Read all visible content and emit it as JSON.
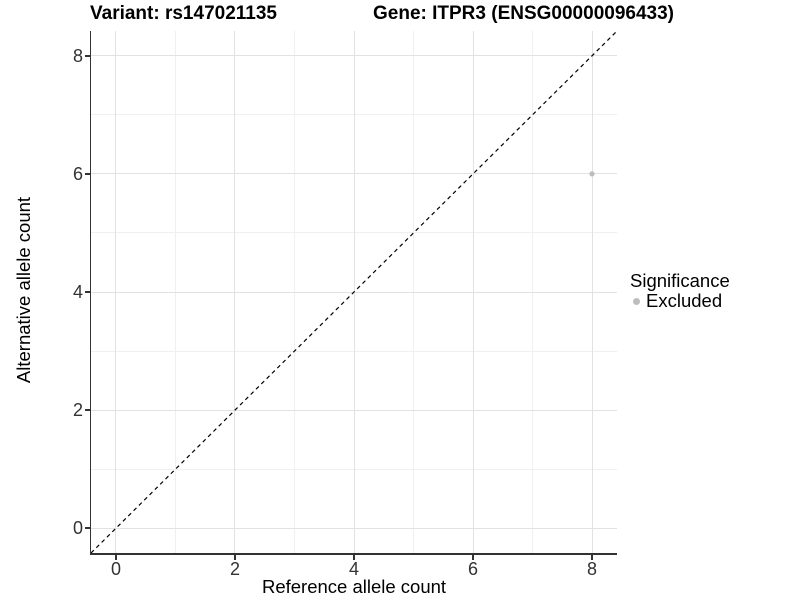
{
  "header": {
    "variant_title": "Variant: rs147021135",
    "gene_title": "Gene: ITPR3 (ENSG00000096433)"
  },
  "axes": {
    "x": {
      "label": "Reference allele count",
      "major_ticks": [
        0,
        2,
        4,
        6,
        8
      ],
      "minor_ticks": [
        1,
        3,
        5,
        7
      ]
    },
    "y": {
      "label": "Alternative allele count",
      "major_ticks": [
        0,
        2,
        4,
        6,
        8
      ],
      "minor_ticks": [
        1,
        3,
        5,
        7
      ]
    }
  },
  "legend": {
    "title": "Significance",
    "entries": [
      {
        "label": "Excluded",
        "color": "#bdbdbd"
      }
    ]
  },
  "chart_data": {
    "type": "scatter",
    "title": "Variant: rs147021135 — Gene: ITPR3 (ENSG00000096433)",
    "xlabel": "Reference allele count",
    "ylabel": "Alternative allele count",
    "xlim": [
      -0.42,
      8.42
    ],
    "ylim": [
      -0.42,
      8.42
    ],
    "x_ticks": [
      0,
      2,
      4,
      6,
      8
    ],
    "y_ticks": [
      0,
      2,
      4,
      6,
      8
    ],
    "grid": "on",
    "legend_position": "right",
    "series": [
      {
        "name": "Excluded",
        "color": "#bdbdbd",
        "point_radius": 2.6,
        "points": [
          {
            "x": 8,
            "y": 6
          }
        ]
      }
    ],
    "reference_line": {
      "type": "identity y=x",
      "style": "dashed",
      "color": "#000000"
    }
  },
  "colors": {
    "grid_major": "#e2e2e2",
    "grid_minor": "#f0f0f0",
    "axis": "#333333",
    "tick_label": "#333333",
    "text": "#000000"
  }
}
